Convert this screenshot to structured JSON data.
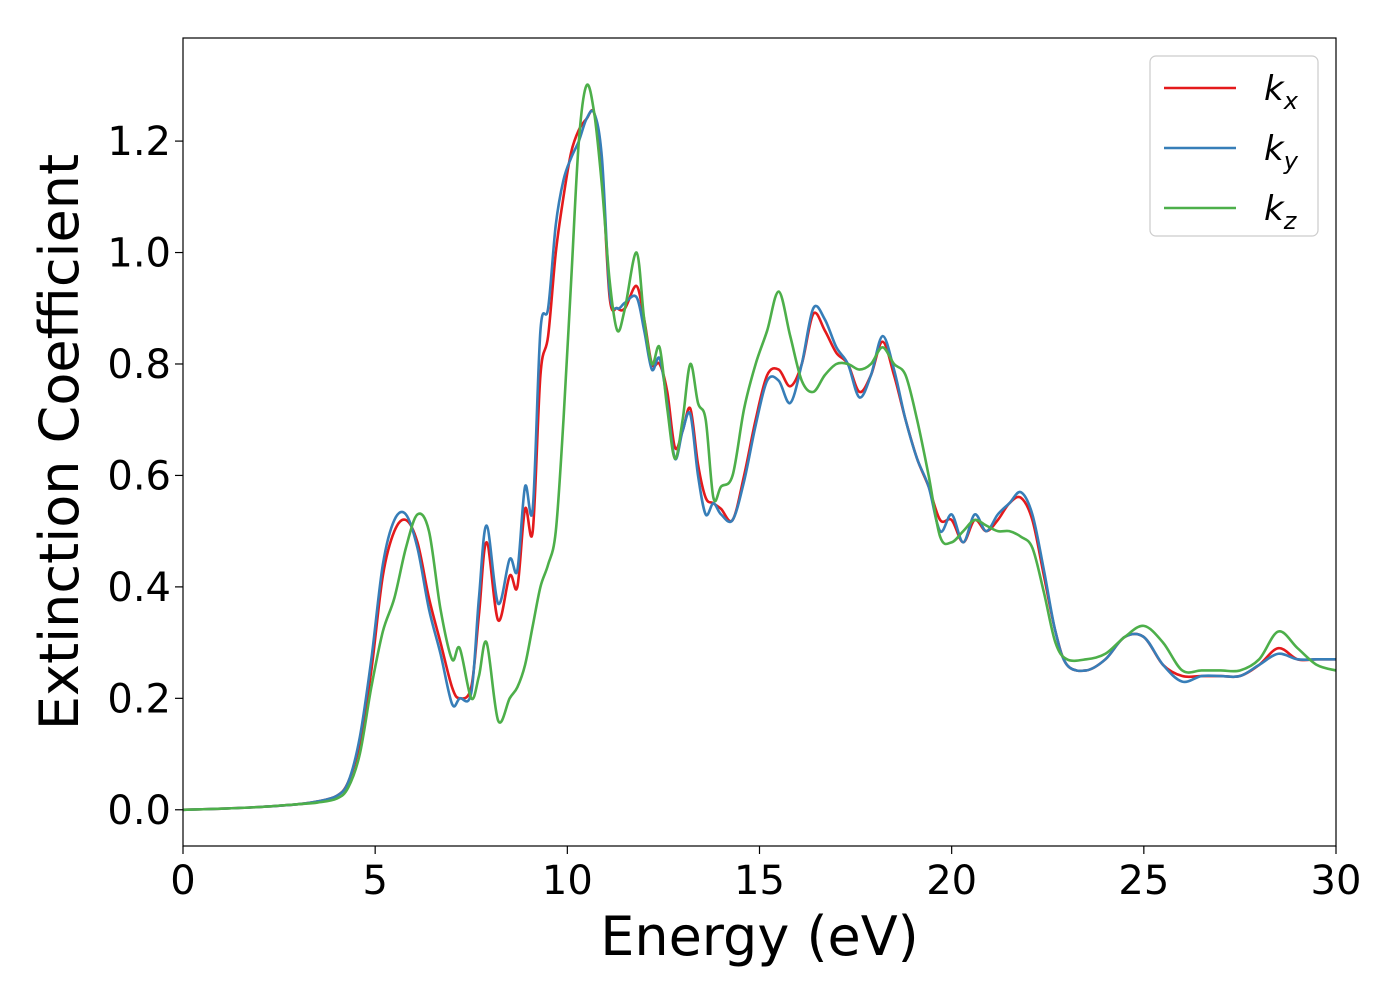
{
  "chart_data": {
    "type": "line",
    "title": "",
    "xlabel": "Energy (eV)",
    "ylabel": "Extinction Coefficient",
    "xlim": [
      0,
      30
    ],
    "ylim": [
      -0.065,
      1.385
    ],
    "xticks": [
      0,
      5,
      10,
      15,
      20,
      25,
      30
    ],
    "xtick_labels": [
      "0",
      "5",
      "10",
      "15",
      "20",
      "25",
      "30"
    ],
    "yticks": [
      0.0,
      0.2,
      0.4,
      0.6,
      0.8,
      1.0,
      1.2
    ],
    "ytick_labels": [
      "0.0",
      "0.2",
      "0.4",
      "0.6",
      "0.8",
      "1.0",
      "1.2"
    ],
    "grid": false,
    "legend_position": "top-right",
    "series": [
      {
        "name": "k_x",
        "legend_base": "k",
        "legend_sub": "x",
        "color": "#e41a1c",
        "x": [
          0,
          1,
          2,
          3,
          3.5,
          4,
          4.3,
          4.6,
          4.9,
          5.2,
          5.5,
          5.8,
          6.1,
          6.4,
          6.7,
          7.0,
          7.2,
          7.5,
          7.7,
          7.9,
          8.2,
          8.5,
          8.7,
          8.9,
          9.1,
          9.3,
          9.5,
          9.7,
          9.9,
          10.1,
          10.3,
          10.5,
          10.7,
          10.9,
          11.1,
          11.3,
          11.5,
          11.8,
          12.0,
          12.2,
          12.4,
          12.6,
          12.8,
          13.0,
          13.2,
          13.4,
          13.6,
          13.8,
          14.0,
          14.3,
          14.6,
          14.9,
          15.2,
          15.5,
          15.8,
          16.1,
          16.4,
          16.7,
          17.0,
          17.3,
          17.6,
          17.9,
          18.2,
          18.5,
          18.8,
          19.1,
          19.4,
          19.7,
          20.0,
          20.3,
          20.6,
          20.9,
          21.2,
          21.5,
          21.8,
          22.1,
          22.4,
          22.7,
          23.0,
          23.5,
          24.0,
          24.5,
          25.0,
          25.5,
          26.0,
          26.5,
          27.0,
          27.5,
          28.0,
          28.5,
          29.0,
          29.5,
          30.0
        ],
        "y": [
          0.0,
          0.002,
          0.005,
          0.01,
          0.015,
          0.025,
          0.05,
          0.12,
          0.25,
          0.42,
          0.5,
          0.52,
          0.48,
          0.38,
          0.3,
          0.22,
          0.2,
          0.22,
          0.35,
          0.48,
          0.34,
          0.42,
          0.4,
          0.54,
          0.5,
          0.78,
          0.85,
          1.0,
          1.1,
          1.18,
          1.22,
          1.24,
          1.25,
          1.15,
          0.92,
          0.9,
          0.9,
          0.94,
          0.88,
          0.8,
          0.8,
          0.75,
          0.65,
          0.68,
          0.72,
          0.62,
          0.56,
          0.55,
          0.54,
          0.52,
          0.6,
          0.7,
          0.78,
          0.79,
          0.76,
          0.8,
          0.89,
          0.86,
          0.82,
          0.8,
          0.75,
          0.78,
          0.84,
          0.78,
          0.7,
          0.63,
          0.58,
          0.52,
          0.52,
          0.48,
          0.52,
          0.5,
          0.52,
          0.55,
          0.56,
          0.52,
          0.42,
          0.32,
          0.26,
          0.25,
          0.27,
          0.31,
          0.31,
          0.26,
          0.24,
          0.24,
          0.24,
          0.24,
          0.26,
          0.29,
          0.27,
          0.27,
          0.27
        ]
      },
      {
        "name": "k_y",
        "legend_base": "k",
        "legend_sub": "y",
        "color": "#377eb8",
        "x": [
          0,
          1,
          2,
          3,
          3.5,
          4,
          4.3,
          4.6,
          4.9,
          5.2,
          5.5,
          5.8,
          6.1,
          6.4,
          6.7,
          7.0,
          7.2,
          7.5,
          7.7,
          7.9,
          8.2,
          8.5,
          8.7,
          8.9,
          9.1,
          9.3,
          9.5,
          9.7,
          9.9,
          10.1,
          10.3,
          10.5,
          10.7,
          10.9,
          11.1,
          11.3,
          11.5,
          11.8,
          12.0,
          12.2,
          12.4,
          12.6,
          12.8,
          13.0,
          13.2,
          13.4,
          13.6,
          13.8,
          14.0,
          14.3,
          14.6,
          14.9,
          15.2,
          15.5,
          15.8,
          16.1,
          16.4,
          16.7,
          17.0,
          17.3,
          17.6,
          17.9,
          18.2,
          18.5,
          18.8,
          19.1,
          19.4,
          19.7,
          20.0,
          20.3,
          20.6,
          20.9,
          21.2,
          21.5,
          21.8,
          22.1,
          22.4,
          22.7,
          23.0,
          23.5,
          24.0,
          24.5,
          25.0,
          25.5,
          26.0,
          26.5,
          27.0,
          27.5,
          28.0,
          28.5,
          29.0,
          29.5,
          30.0
        ],
        "y": [
          0.0,
          0.002,
          0.005,
          0.01,
          0.015,
          0.025,
          0.05,
          0.13,
          0.27,
          0.44,
          0.52,
          0.53,
          0.47,
          0.36,
          0.28,
          0.19,
          0.2,
          0.21,
          0.38,
          0.51,
          0.37,
          0.45,
          0.43,
          0.58,
          0.54,
          0.86,
          0.9,
          1.05,
          1.13,
          1.17,
          1.2,
          1.24,
          1.25,
          1.17,
          0.93,
          0.9,
          0.91,
          0.92,
          0.86,
          0.79,
          0.81,
          0.73,
          0.63,
          0.68,
          0.71,
          0.6,
          0.53,
          0.55,
          0.53,
          0.52,
          0.59,
          0.69,
          0.77,
          0.77,
          0.73,
          0.8,
          0.9,
          0.88,
          0.83,
          0.8,
          0.74,
          0.78,
          0.85,
          0.79,
          0.7,
          0.63,
          0.58,
          0.5,
          0.53,
          0.48,
          0.53,
          0.5,
          0.53,
          0.55,
          0.57,
          0.53,
          0.43,
          0.32,
          0.26,
          0.25,
          0.27,
          0.31,
          0.31,
          0.26,
          0.23,
          0.24,
          0.24,
          0.24,
          0.26,
          0.28,
          0.27,
          0.27,
          0.27
        ]
      },
      {
        "name": "k_z",
        "legend_base": "k",
        "legend_sub": "z",
        "color": "#4daf4a",
        "x": [
          0,
          1,
          2,
          3,
          3.5,
          4,
          4.3,
          4.6,
          4.9,
          5.2,
          5.5,
          5.8,
          6.1,
          6.4,
          6.7,
          7.0,
          7.2,
          7.5,
          7.7,
          7.9,
          8.2,
          8.5,
          8.7,
          8.9,
          9.1,
          9.3,
          9.5,
          9.7,
          9.9,
          10.1,
          10.3,
          10.5,
          10.7,
          10.9,
          11.1,
          11.3,
          11.5,
          11.8,
          12.0,
          12.2,
          12.4,
          12.6,
          12.8,
          13.0,
          13.2,
          13.4,
          13.6,
          13.8,
          14.0,
          14.3,
          14.6,
          14.9,
          15.2,
          15.5,
          15.8,
          16.1,
          16.4,
          16.7,
          17.0,
          17.3,
          17.6,
          17.9,
          18.2,
          18.5,
          18.8,
          19.1,
          19.4,
          19.7,
          20.0,
          20.3,
          20.6,
          20.9,
          21.2,
          21.5,
          21.8,
          22.1,
          22.4,
          22.7,
          23.0,
          23.5,
          24.0,
          24.5,
          25.0,
          25.5,
          26.0,
          26.5,
          27.0,
          27.5,
          28.0,
          28.5,
          29.0,
          29.5,
          30.0
        ],
        "y": [
          0.0,
          0.002,
          0.005,
          0.01,
          0.013,
          0.02,
          0.04,
          0.1,
          0.22,
          0.32,
          0.38,
          0.47,
          0.53,
          0.5,
          0.36,
          0.27,
          0.29,
          0.2,
          0.24,
          0.3,
          0.16,
          0.2,
          0.22,
          0.26,
          0.33,
          0.4,
          0.44,
          0.5,
          0.7,
          0.95,
          1.2,
          1.3,
          1.25,
          1.12,
          0.95,
          0.86,
          0.9,
          1.0,
          0.88,
          0.8,
          0.83,
          0.72,
          0.63,
          0.7,
          0.8,
          0.73,
          0.7,
          0.56,
          0.58,
          0.6,
          0.72,
          0.8,
          0.86,
          0.93,
          0.85,
          0.77,
          0.75,
          0.78,
          0.8,
          0.8,
          0.79,
          0.8,
          0.83,
          0.8,
          0.78,
          0.7,
          0.6,
          0.49,
          0.48,
          0.5,
          0.52,
          0.51,
          0.5,
          0.5,
          0.49,
          0.47,
          0.39,
          0.3,
          0.27,
          0.27,
          0.28,
          0.31,
          0.33,
          0.3,
          0.25,
          0.25,
          0.25,
          0.25,
          0.27,
          0.32,
          0.29,
          0.26,
          0.25
        ]
      }
    ]
  }
}
